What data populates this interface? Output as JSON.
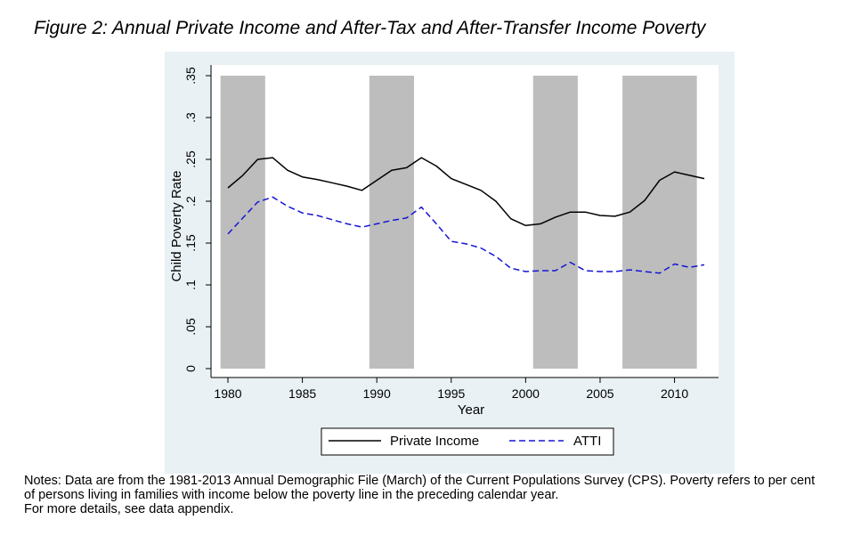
{
  "figure_title": "Figure 2: Annual Private Income and After-Tax and After-Transfer Income Poverty",
  "chart_data": {
    "type": "line",
    "xlabel": "Year",
    "ylabel": "Child Poverty Rate",
    "xlim": [
      1980,
      2012
    ],
    "ylim": [
      0,
      0.35
    ],
    "x_ticks": [
      {
        "value": 1980,
        "label": "1980"
      },
      {
        "value": 1985,
        "label": "1985"
      },
      {
        "value": 1990,
        "label": "1990"
      },
      {
        "value": 1995,
        "label": "1995"
      },
      {
        "value": 2000,
        "label": "2000"
      },
      {
        "value": 2005,
        "label": "2005"
      },
      {
        "value": 2010,
        "label": "2010"
      }
    ],
    "y_ticks": [
      {
        "value": 0,
        "label": "0"
      },
      {
        "value": 0.05,
        "label": ".05"
      },
      {
        "value": 0.1,
        "label": ".1"
      },
      {
        "value": 0.15,
        "label": ".15"
      },
      {
        "value": 0.2,
        "label": ".2"
      },
      {
        "value": 0.25,
        "label": ".25"
      },
      {
        "value": 0.3,
        "label": ".3"
      },
      {
        "value": 0.35,
        "label": ".35"
      }
    ],
    "shaded_periods": [
      [
        1979.5,
        1982.5
      ],
      [
        1989.5,
        1992.5
      ],
      [
        2000.5,
        2003.5
      ],
      [
        2006.5,
        2011.5
      ]
    ],
    "shade_color": "#bdbdbd",
    "legend_position": "bottom",
    "x": [
      1980,
      1981,
      1982,
      1983,
      1984,
      1985,
      1986,
      1987,
      1988,
      1989,
      1990,
      1991,
      1992,
      1993,
      1994,
      1995,
      1996,
      1997,
      1998,
      1999,
      2000,
      2001,
      2002,
      2003,
      2004,
      2005,
      2006,
      2007,
      2008,
      2009,
      2010,
      2011,
      2012
    ],
    "series": [
      {
        "name": "Private Income",
        "color": "#000000",
        "style": "solid",
        "values": [
          0.216,
          0.231,
          0.25,
          0.252,
          0.237,
          0.229,
          0.226,
          0.222,
          0.218,
          0.213,
          0.225,
          0.237,
          0.24,
          0.252,
          0.242,
          0.227,
          0.22,
          0.213,
          0.2,
          0.179,
          0.171,
          0.173,
          0.181,
          0.187,
          0.187,
          0.183,
          0.182,
          0.187,
          0.201,
          0.225,
          0.235,
          0.231,
          0.227
        ]
      },
      {
        "name": "ATTI",
        "color": "#1515d6",
        "style": "dashed",
        "values": [
          0.161,
          0.18,
          0.199,
          0.205,
          0.194,
          0.186,
          0.183,
          0.178,
          0.173,
          0.169,
          0.173,
          0.177,
          0.18,
          0.193,
          0.173,
          0.152,
          0.149,
          0.144,
          0.134,
          0.12,
          0.116,
          0.117,
          0.117,
          0.127,
          0.117,
          0.116,
          0.116,
          0.118,
          0.116,
          0.114,
          0.125,
          0.121,
          0.124
        ]
      }
    ]
  },
  "notes": [
    "Notes: Data are from the 1981-2013 Annual Demographic File (March) of the Current Populations Survey (CPS). Poverty refers to per cent",
    "of persons living in families with income below the poverty line in the preceding calendar year.",
    "For more details, see data appendix."
  ]
}
